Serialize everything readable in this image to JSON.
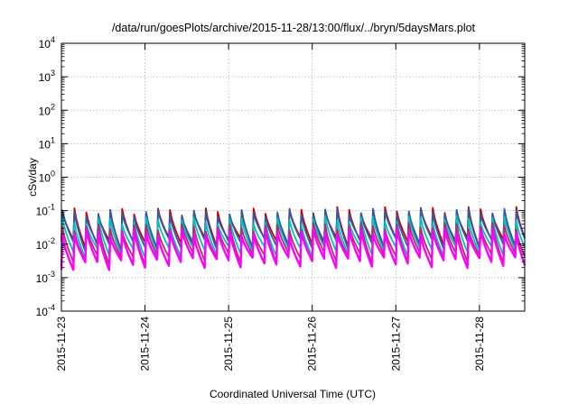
{
  "chart_data": {
    "type": "line",
    "title": "/data/run/goesPlots/archive/2015-11-28/13:00/flux/../bryn/5daysMars.plot",
    "xlabel": "Coordinated Universal Time (UTC)",
    "ylabel": "cSv/day",
    "yscale": "log",
    "ylim": [
      0.0001,
      10000
    ],
    "xlim": [
      "2015-11-23 00:00",
      "2015-11-28 13:00"
    ],
    "x_ticks": [
      "2015-11-23",
      "2015-11-24",
      "2015-11-25",
      "2015-11-26",
      "2015-11-27",
      "2015-11-28"
    ],
    "y_ticks": [
      {
        "value": 0.0001,
        "base": "10",
        "exp": "-4"
      },
      {
        "value": 0.001,
        "base": "10",
        "exp": "-3"
      },
      {
        "value": 0.01,
        "base": "10",
        "exp": "-2"
      },
      {
        "value": 0.1,
        "base": "10",
        "exp": "-1"
      },
      {
        "value": 1,
        "base": "10",
        "exp": "0"
      },
      {
        "value": 10,
        "base": "10",
        "exp": "1"
      },
      {
        "value": 100,
        "base": "10",
        "exp": "2"
      },
      {
        "value": 1000,
        "base": "10",
        "exp": "3"
      },
      {
        "value": 10000,
        "base": "10",
        "exp": "4"
      }
    ],
    "grid": true,
    "cycles_per_day": 7,
    "series": [
      {
        "color": "#ff00ff",
        "peak": 0.022,
        "trough": 0.003
      },
      {
        "color": "#b0306a",
        "peak": 0.032,
        "trough": 0.0042
      },
      {
        "color": "#00c0c0",
        "peak": 0.05,
        "trough": 0.0065
      },
      {
        "color": "#2a5caa",
        "peak": 0.085,
        "trough": 0.011
      },
      {
        "color": "#cc0000",
        "peak": 0.095,
        "trough": 0.012
      }
    ]
  }
}
